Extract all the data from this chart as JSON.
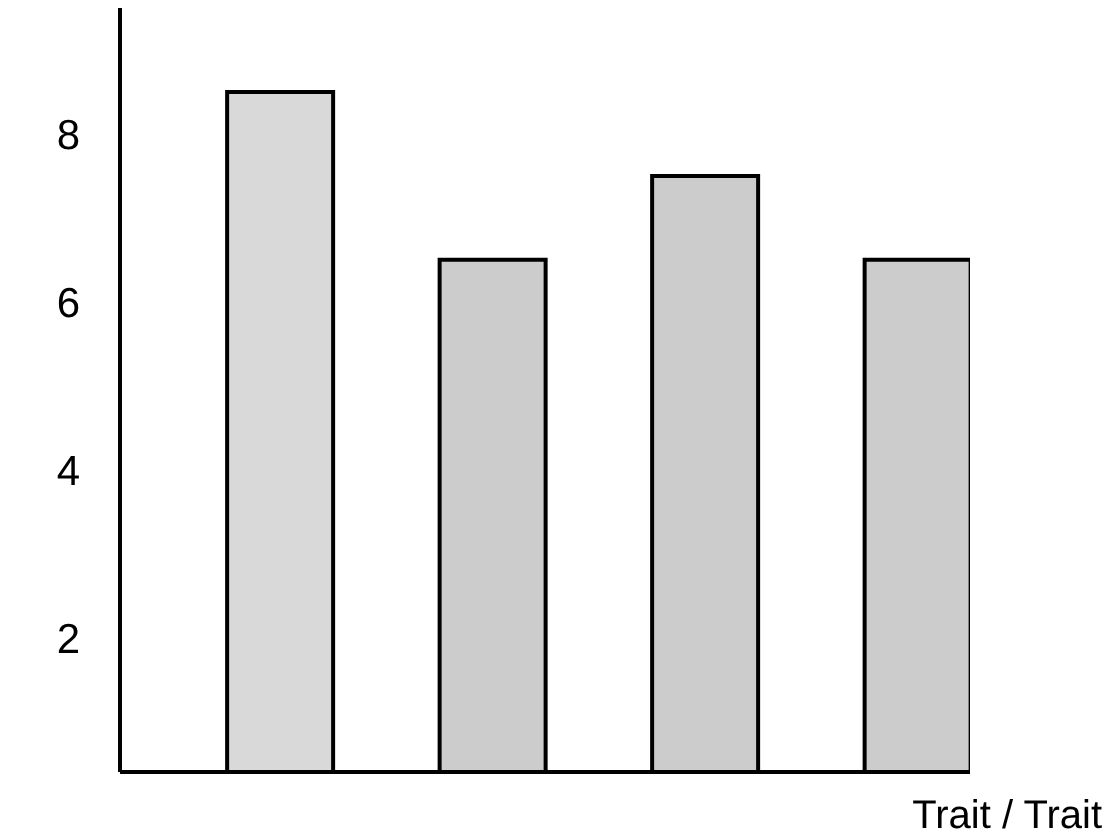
{
  "chart_data": {
    "type": "bar",
    "xlabel": "Trait / Trait",
    "categories": [
      null,
      null,
      null,
      null
    ],
    "values": [
      8.5,
      6.5,
      7.5,
      6.5
    ],
    "colors": [
      "#d9d9d9",
      "#cccccc",
      "#cccccc",
      "#cccccc"
    ],
    "ylim": [
      0.4,
      9.5
    ],
    "yticks": [
      2,
      4,
      6,
      8
    ],
    "grid": false
  }
}
